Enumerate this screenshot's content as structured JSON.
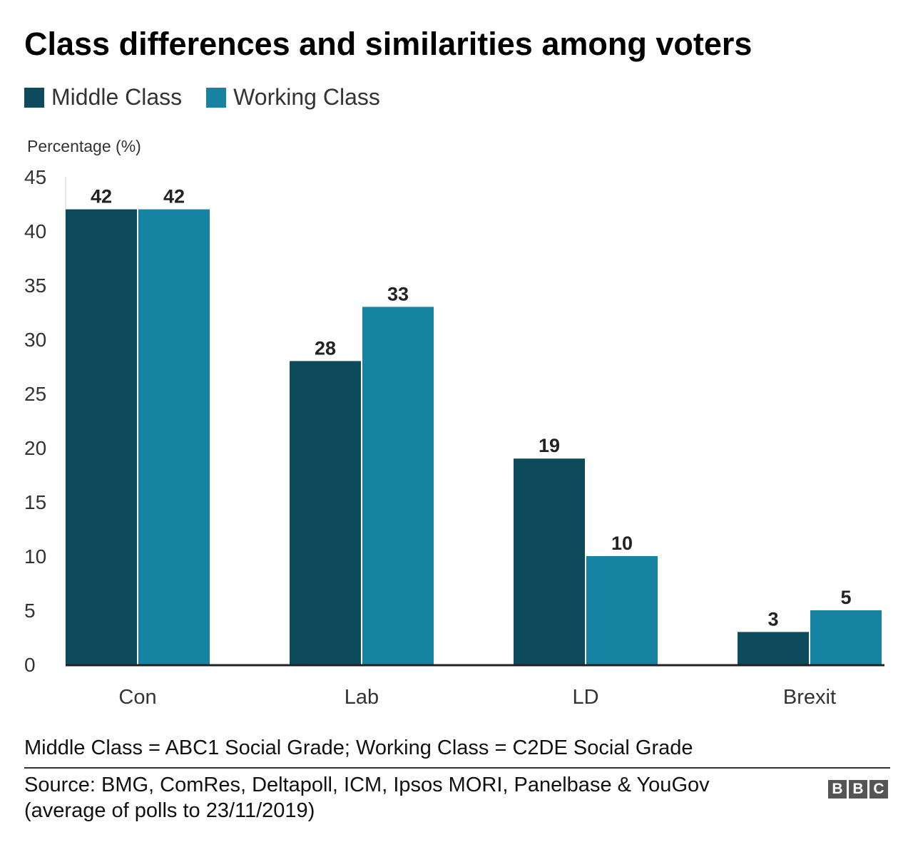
{
  "header": {
    "title": "Class differences and similarities among voters"
  },
  "colors": {
    "middle": "#0d4b5c",
    "working": "#1683a3",
    "axis": "#222222",
    "grid": "#cccccc"
  },
  "chart_data": {
    "type": "bar",
    "title": "Class differences and similarities among voters",
    "xlabel": "",
    "ylabel": "Percentage (%)",
    "ylim": [
      0,
      45
    ],
    "yticks": [
      0,
      5,
      10,
      15,
      20,
      25,
      30,
      35,
      40,
      45
    ],
    "categories": [
      "Con",
      "Lab",
      "LD",
      "Brexit"
    ],
    "series": [
      {
        "name": "Middle Class",
        "values": [
          42,
          28,
          19,
          3
        ]
      },
      {
        "name": "Working Class",
        "values": [
          42,
          33,
          10,
          5
        ]
      }
    ],
    "legend_position": "top-left",
    "data_labels": true
  },
  "footer": {
    "note": "Middle Class = ABC1 Social Grade; Working Class = C2DE Social Grade",
    "source_line1": "Source: BMG, ComRes, Deltapoll, ICM, Ipsos MORI, Panelbase & YouGov",
    "source_line2": "(average of polls to 23/11/2019)",
    "logo": [
      "B",
      "B",
      "C"
    ]
  }
}
